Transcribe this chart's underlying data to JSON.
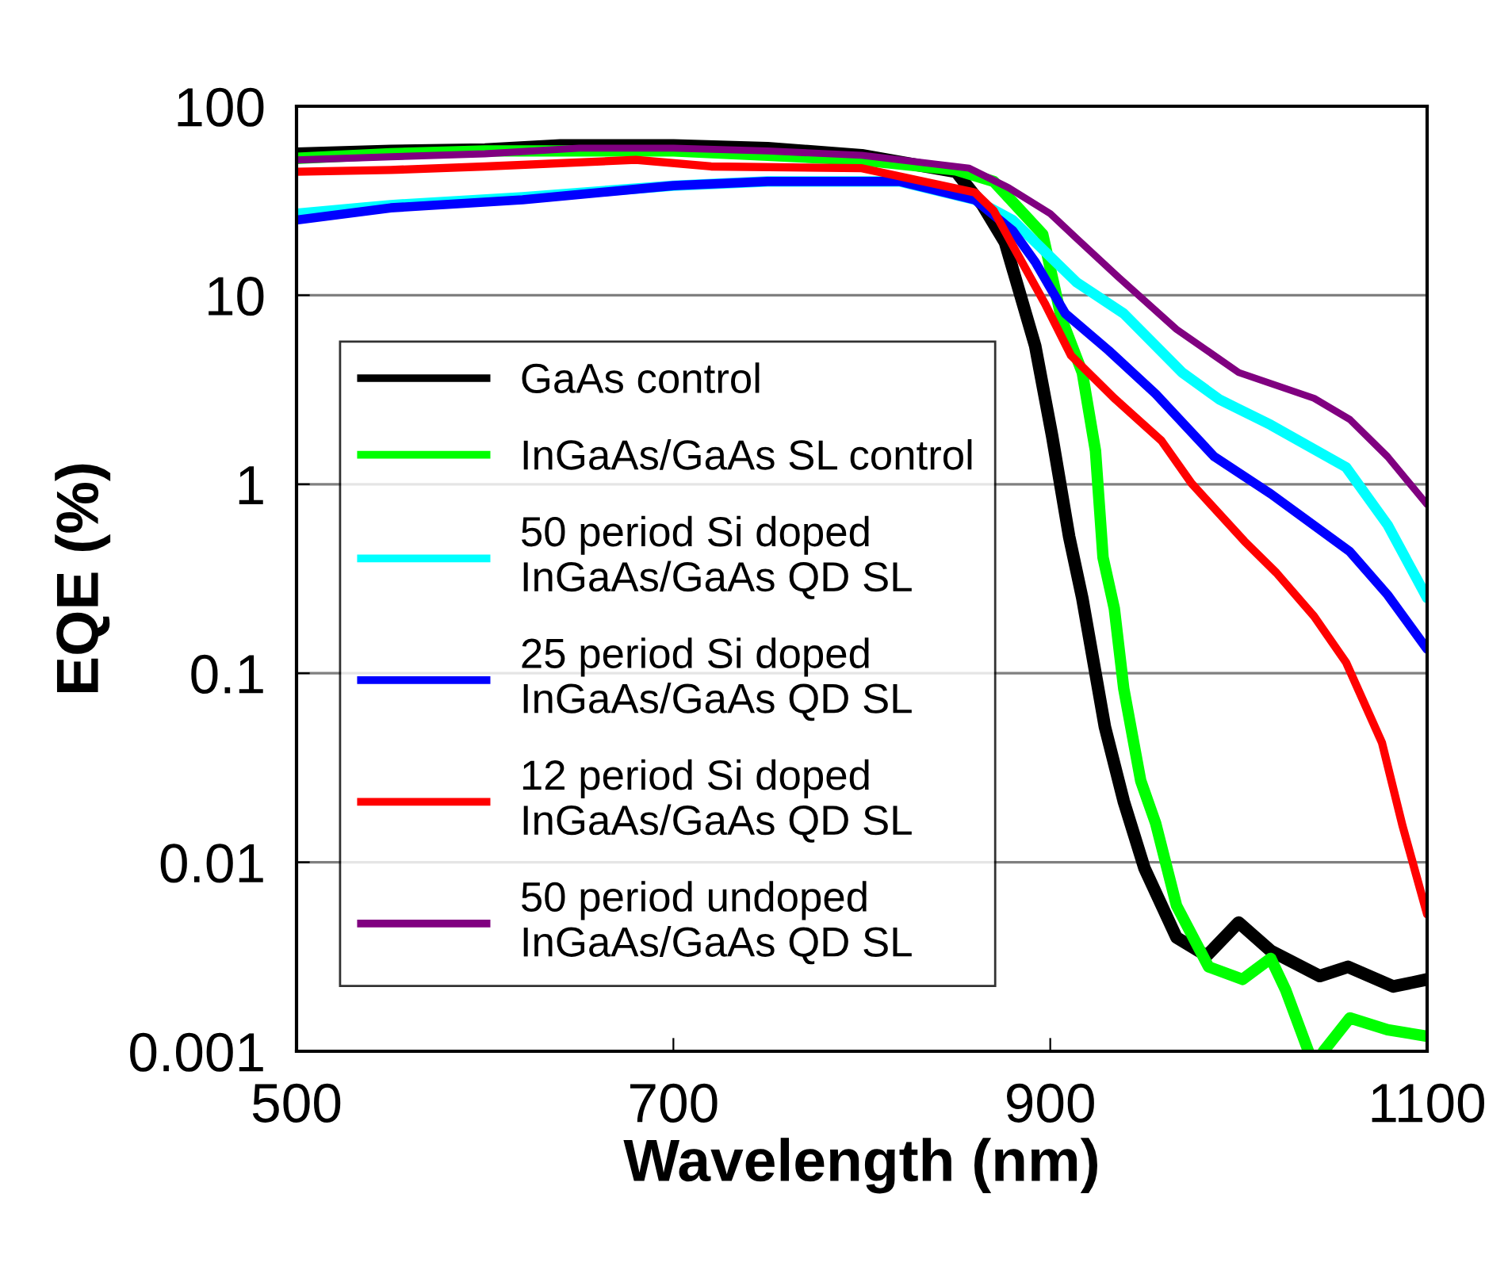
{
  "chart_data": {
    "type": "line",
    "xlabel": "Wavelength (nm)",
    "ylabel": "EQE (%)",
    "log": "y",
    "xlim": [
      500,
      1100
    ],
    "xticks": [
      500,
      700,
      900,
      1100
    ],
    "ylim": [
      0.001,
      100
    ],
    "yticks": [
      0.001,
      0.01,
      0.1,
      1,
      10,
      100
    ],
    "grid": "y",
    "legend": "left",
    "marker": "none",
    "line_style": "solid",
    "series": [
      {
        "name": "GaAs control",
        "color": "#000000",
        "x": [
          500,
          550,
          600,
          640,
          700,
          750,
          800,
          850,
          864,
          876,
          892,
          901,
          910,
          917,
          924,
          929,
          939,
          950,
          967,
          983,
          1000,
          1017,
          1043,
          1058,
          1082,
          1100
        ],
        "values": [
          56,
          58,
          59,
          62,
          62,
          60,
          55,
          45,
          30,
          19,
          5.4,
          1.8,
          0.53,
          0.25,
          0.1,
          0.052,
          0.021,
          0.0093,
          0.004,
          0.0032,
          0.0048,
          0.0034,
          0.0025,
          0.0028,
          0.0022,
          0.0024
        ]
      },
      {
        "name": "InGaAs/GaAs SL control",
        "color": "#00ff00",
        "x": [
          500,
          550,
          600,
          650,
          700,
          750,
          800,
          850,
          870,
          896,
          906,
          917,
          924,
          928,
          934,
          939,
          948,
          956,
          967,
          984,
          1002,
          1017,
          1025,
          1037,
          1041,
          1045,
          1059,
          1079,
          1100
        ],
        "values": [
          53,
          56,
          58,
          58,
          58,
          55,
          52,
          46,
          40,
          21,
          7.5,
          3.9,
          1.5,
          0.41,
          0.22,
          0.083,
          0.027,
          0.016,
          0.0059,
          0.0028,
          0.0024,
          0.0031,
          0.0021,
          0.001,
          null,
          0.001,
          0.0015,
          0.0013,
          0.0012
        ]
      },
      {
        "name": "50 period Si doped\nInGaAs/GaAs QD SL",
        "color": "#00ffff",
        "x": [
          500,
          550,
          620,
          700,
          750,
          820,
          860,
          880,
          914,
          939,
          970,
          990,
          1017,
          1057,
          1079,
          1100
        ],
        "values": [
          27,
          30,
          33,
          38,
          40,
          40,
          32,
          25,
          11.7,
          8,
          3.9,
          2.8,
          2.06,
          1.23,
          0.61,
          0.25
        ]
      },
      {
        "name": "25 period Si doped\nInGaAs/GaAs QD SL",
        "color": "#0000ff",
        "x": [
          500,
          550,
          620,
          700,
          750,
          820,
          860,
          880,
          892,
          908,
          931,
          956,
          987,
          1017,
          1059,
          1079,
          1100
        ],
        "values": [
          25,
          29,
          32,
          38,
          40,
          40,
          32,
          22,
          15,
          8,
          5.1,
          3.0,
          1.4,
          0.89,
          0.44,
          0.26,
          0.134
        ]
      },
      {
        "name": "12 period Si doped\nInGaAs/GaAs QD SL",
        "color": "#ff0000",
        "x": [
          500,
          550,
          600,
          680,
          720,
          800,
          860,
          870,
          878,
          897,
          911,
          934,
          959,
          975,
          1003,
          1020,
          1040,
          1057,
          1076,
          1087,
          1100
        ],
        "values": [
          45,
          46,
          48,
          52,
          48,
          47,
          35,
          28,
          20,
          9.1,
          4.8,
          2.85,
          1.7,
          1.01,
          0.5,
          0.34,
          0.2,
          0.114,
          0.043,
          0.0155,
          0.0053
        ]
      },
      {
        "name": "50 period undoped\nInGaAs/GaAs QD SL",
        "color": "#800080",
        "x": [
          500,
          550,
          600,
          650,
          700,
          750,
          800,
          857,
          878,
          900,
          914,
          936,
          967,
          1000,
          1040,
          1059,
          1079,
          1100
        ],
        "values": [
          52,
          54,
          56,
          60,
          60,
          58,
          55,
          47,
          37,
          27,
          20,
          12.5,
          6.6,
          3.9,
          2.85,
          2.2,
          1.4,
          0.78
        ]
      }
    ]
  }
}
